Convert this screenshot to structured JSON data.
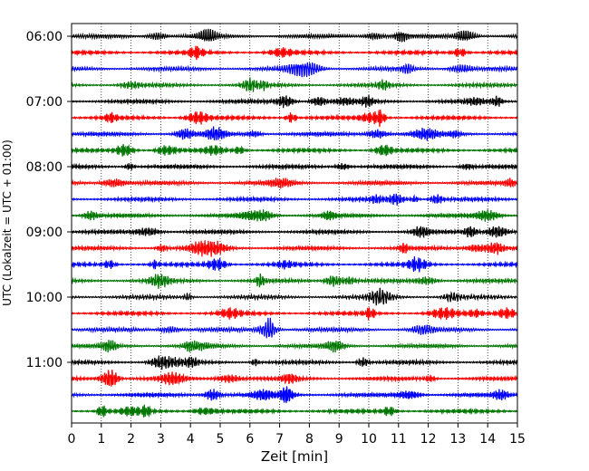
{
  "chart_data": {
    "type": "line",
    "subtype": "helicorder",
    "title": "",
    "xlabel": "Zeit  [min]",
    "ylabel": "UTC (Lokalzeit = UTC + 01:00)",
    "xlim": [
      0,
      15
    ],
    "x_ticks": [
      0,
      1,
      2,
      3,
      4,
      5,
      6,
      7,
      8,
      9,
      10,
      11,
      12,
      13,
      14,
      15
    ],
    "vertical_grid": true,
    "grid_style": "dotted",
    "trace_minutes": 15,
    "trace_count": 24,
    "trace_colors": [
      "#000000",
      "#ff0000",
      "#0000ff",
      "#007700"
    ],
    "y_ticks": [
      {
        "label": "06:00",
        "trace_index": 0
      },
      {
        "label": "07:00",
        "trace_index": 4
      },
      {
        "label": "08:00",
        "trace_index": 8
      },
      {
        "label": "09:00",
        "trace_index": 12
      },
      {
        "label": "10:00",
        "trace_index": 16
      },
      {
        "label": "11:00",
        "trace_index": 20
      }
    ]
  }
}
